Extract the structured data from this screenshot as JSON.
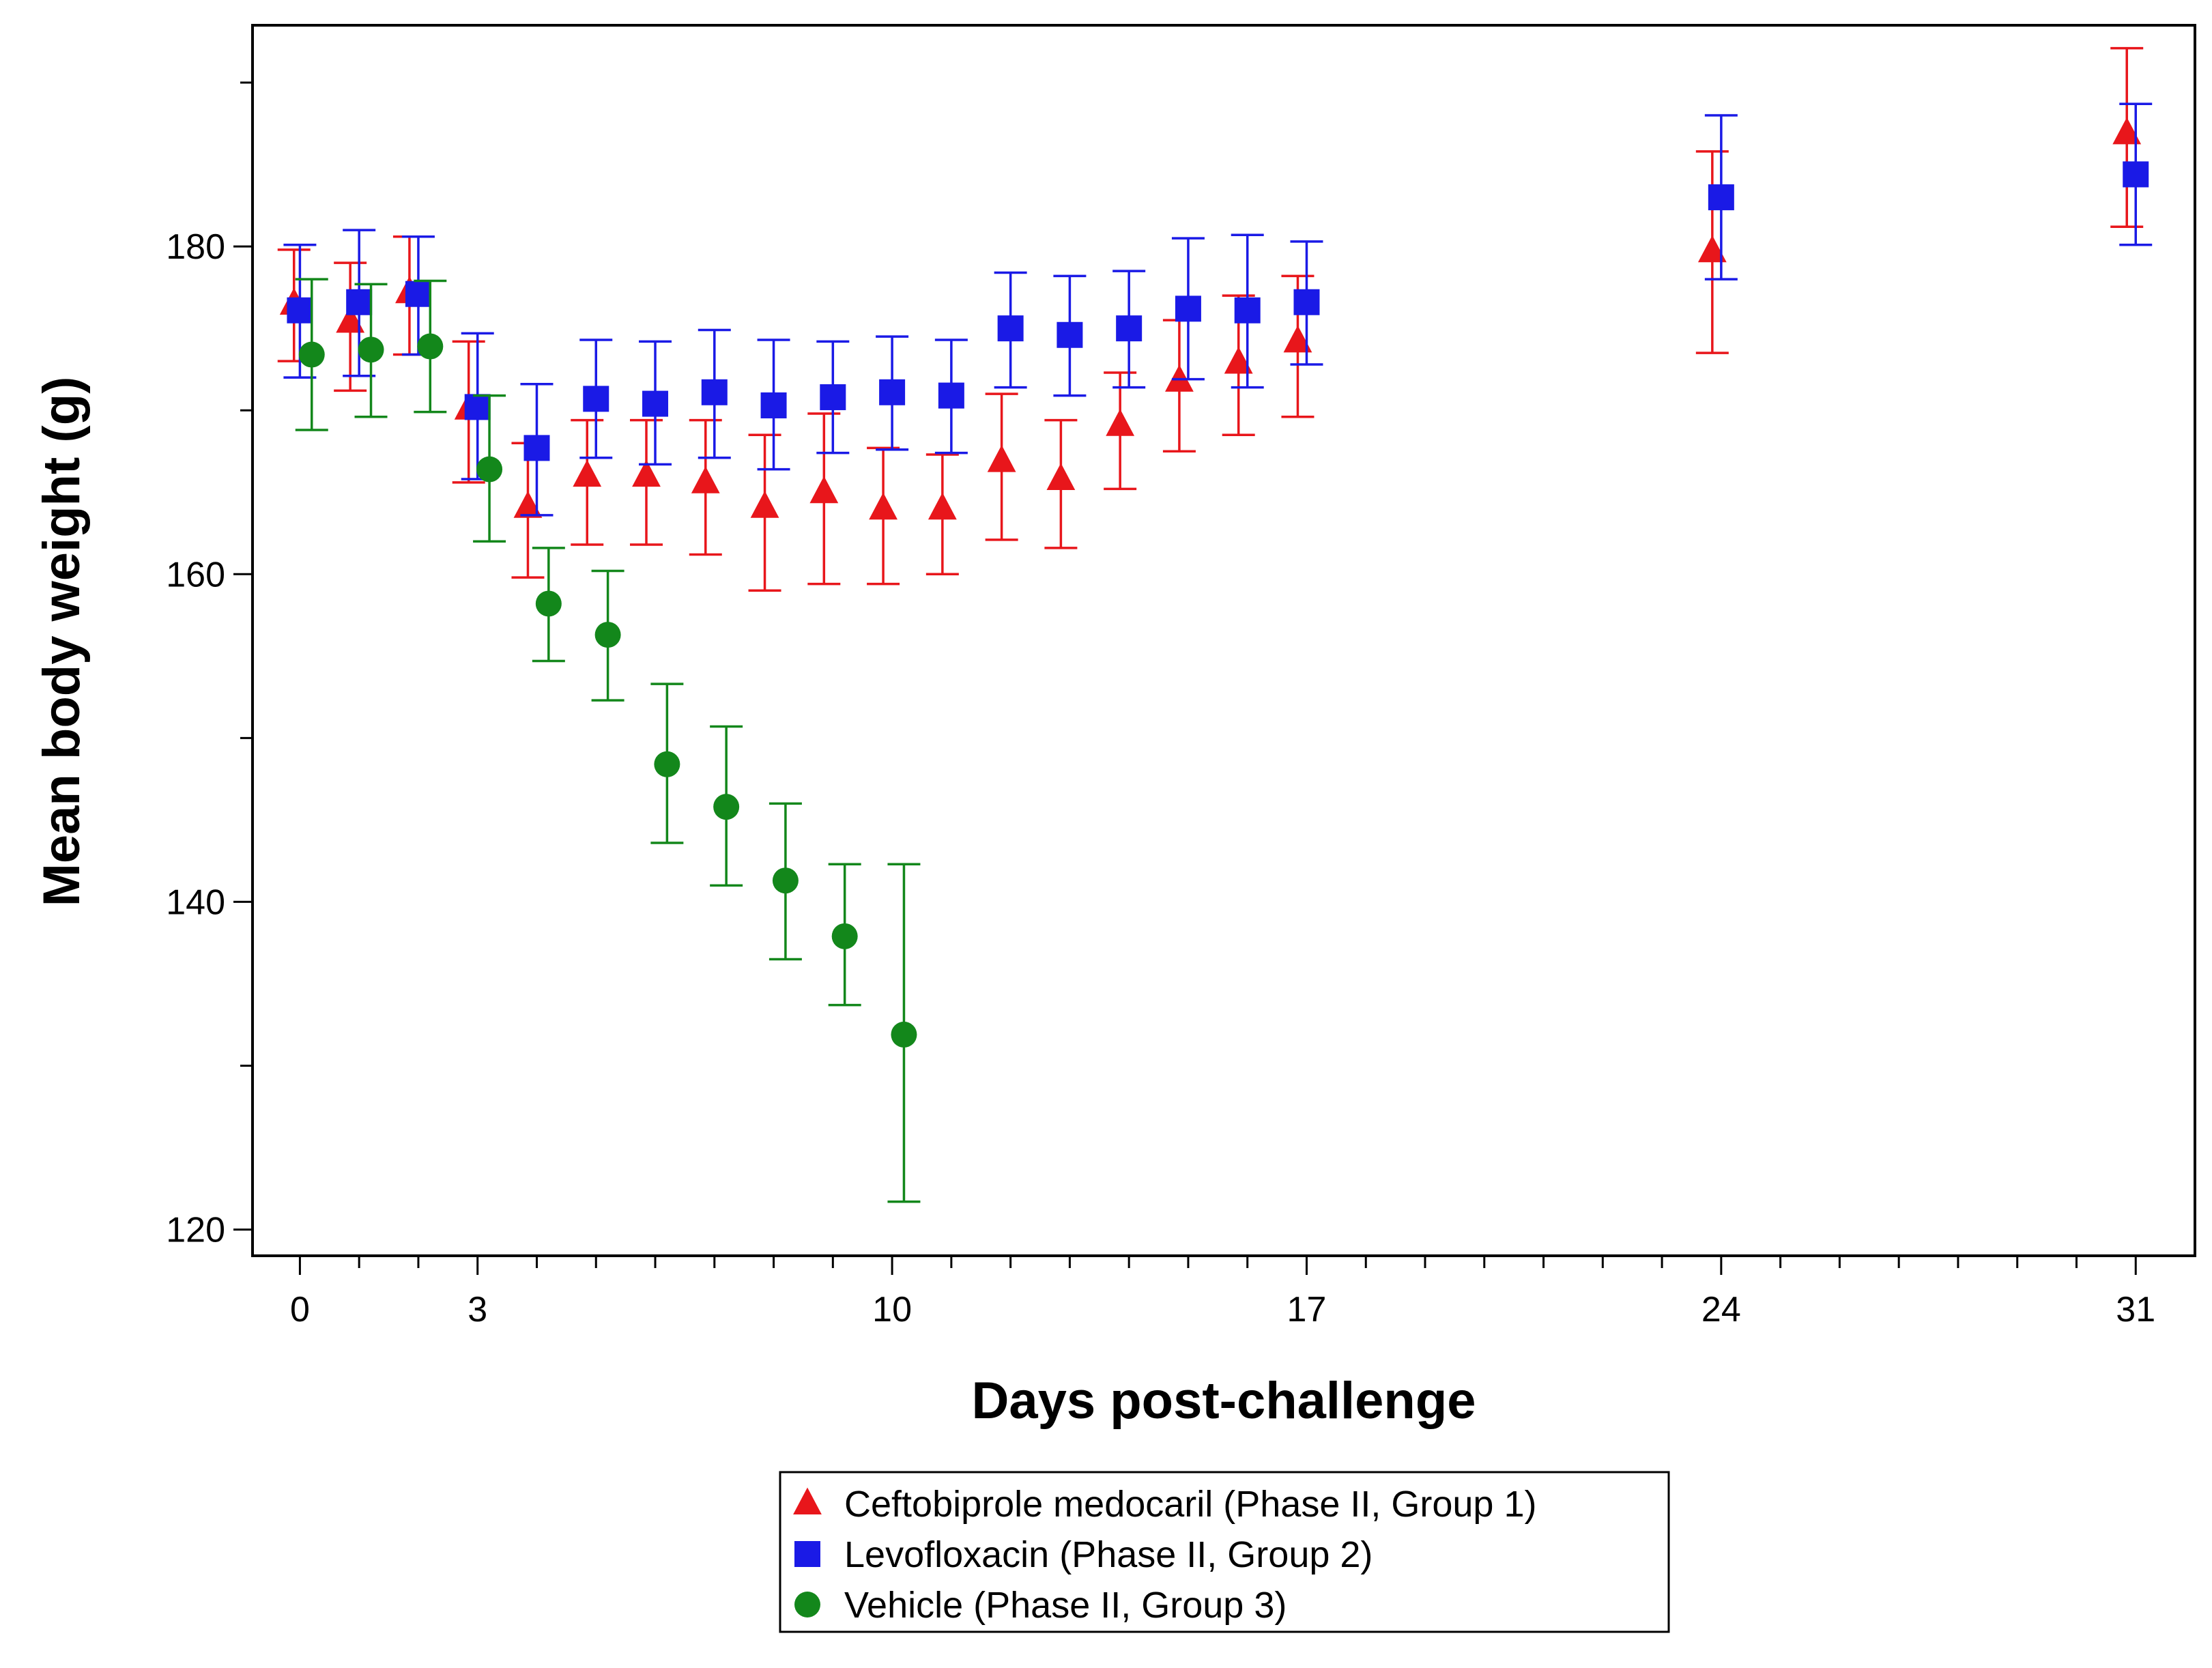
{
  "chart_data": {
    "type": "scatter",
    "error_bars": true,
    "xlabel": "Days post-challenge",
    "ylabel": "Mean body weight (g)",
    "xlim": [
      -0.8,
      32
    ],
    "ylim": [
      118.4,
      193.5
    ],
    "x_ticks": [
      0,
      3,
      10,
      17,
      24,
      31
    ],
    "x_minor_ticks": [
      1,
      2,
      4,
      5,
      6,
      7,
      8,
      9,
      11,
      12,
      13,
      14,
      15,
      16,
      18,
      19,
      20,
      21,
      22,
      23,
      25,
      26,
      27,
      28,
      29,
      30
    ],
    "y_ticks": [
      120,
      140,
      160,
      180
    ],
    "y_minor_ticks": [
      130,
      150,
      170,
      190
    ],
    "legend_position": "bottom-center",
    "series": [
      {
        "name": "Ceftobiprole medocaril (Phase II, Group 1)",
        "color": "#e8161b",
        "marker": "triangle",
        "x": [
          -0.1,
          0.85,
          1.85,
          2.85,
          3.85,
          4.85,
          5.85,
          6.85,
          7.85,
          8.85,
          9.85,
          10.85,
          11.85,
          12.85,
          13.85,
          14.85,
          15.85,
          16.85,
          23.85,
          30.85
        ],
        "y": [
          176.5,
          175.4,
          177.2,
          170.1,
          164.1,
          166.0,
          166.0,
          165.6,
          164.1,
          165.0,
          164.0,
          164.0,
          166.9,
          165.8,
          169.1,
          171.8,
          172.9,
          174.2,
          179.7,
          186.9
        ],
        "lower": [
          173.0,
          171.2,
          173.4,
          165.6,
          159.8,
          161.8,
          161.8,
          161.2,
          159.0,
          159.4,
          159.4,
          160.0,
          162.1,
          161.6,
          165.2,
          167.5,
          168.5,
          169.6,
          173.5,
          181.2
        ],
        "upper": [
          179.8,
          179.0,
          180.6,
          174.2,
          168.0,
          169.4,
          169.4,
          169.4,
          168.5,
          169.8,
          167.7,
          167.3,
          171.0,
          169.4,
          172.3,
          175.5,
          177.0,
          178.2,
          185.8,
          192.1
        ]
      },
      {
        "name": "Levofloxacin (Phase II, Group 2)",
        "color": "#1a1ae6",
        "marker": "square",
        "x": [
          0.0,
          1.0,
          2.0,
          3.0,
          4.0,
          5.0,
          6.0,
          7.0,
          8.0,
          9.0,
          10.0,
          11.0,
          12.0,
          13.0,
          14.0,
          15.0,
          16.0,
          17.0,
          24.0,
          31.0
        ],
        "y": [
          176.1,
          176.6,
          177.1,
          170.2,
          167.7,
          170.7,
          170.4,
          171.1,
          170.3,
          170.8,
          171.1,
          170.9,
          175.0,
          174.6,
          175.0,
          176.2,
          176.1,
          176.6,
          183.0,
          184.4
        ],
        "lower": [
          172.0,
          172.1,
          173.4,
          165.8,
          163.6,
          167.1,
          166.7,
          167.1,
          166.4,
          167.4,
          167.6,
          167.4,
          171.4,
          170.9,
          171.4,
          171.9,
          171.4,
          172.8,
          178.0,
          180.1
        ],
        "upper": [
          180.1,
          181.0,
          180.6,
          174.7,
          171.6,
          174.3,
          174.2,
          174.9,
          174.3,
          174.2,
          174.5,
          174.3,
          178.4,
          178.2,
          178.5,
          180.5,
          180.7,
          180.3,
          188.0,
          188.7
        ]
      },
      {
        "name": "Vehicle (Phase II, Group 3)",
        "color": "#13871b",
        "marker": "circle",
        "x": [
          0.2,
          1.2,
          2.2,
          3.2,
          4.2,
          5.2,
          6.2,
          7.2,
          8.2,
          9.2,
          10.2
        ],
        "y": [
          173.4,
          173.7,
          173.9,
          166.4,
          158.2,
          156.3,
          148.4,
          145.8,
          141.3,
          137.9,
          131.9
        ],
        "lower": [
          168.8,
          169.6,
          169.9,
          162.0,
          154.7,
          152.3,
          143.6,
          141.0,
          136.5,
          133.7,
          121.7
        ],
        "upper": [
          178.0,
          177.7,
          177.9,
          170.9,
          161.6,
          160.2,
          153.3,
          150.7,
          146.0,
          142.3,
          142.3
        ]
      }
    ]
  }
}
